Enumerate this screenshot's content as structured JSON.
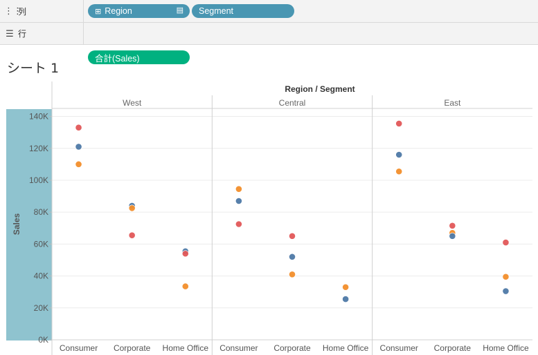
{
  "shelves": {
    "columns": {
      "icon": "columns-icon",
      "label": "列",
      "pills": [
        "Region",
        "Segment"
      ]
    },
    "rows": {
      "icon": "rows-icon",
      "label": "行",
      "pills": [
        "合計(Sales)"
      ]
    }
  },
  "sheet_title": "シート 1",
  "colors": {
    "pill_dimension": "#4996b2",
    "pill_measure": "#00b180",
    "axis_band": "#8fc3cf",
    "Consumer": "#e15759",
    "Corporate": "#4e79a7",
    "Home Office": "#f28e2b"
  },
  "chart_data": {
    "type": "scatter",
    "header_title": "Region / Segment",
    "regions": [
      "West",
      "Central",
      "East"
    ],
    "segments": [
      "Consumer",
      "Corporate",
      "Home Office"
    ],
    "ylabel": "Sales",
    "ylim": [
      0,
      145000
    ],
    "yticks": [
      0,
      20000,
      40000,
      60000,
      80000,
      100000,
      120000,
      140000
    ],
    "ytick_labels": [
      "0K",
      "20K",
      "40K",
      "60K",
      "80K",
      "100K",
      "120K",
      "140K"
    ],
    "grid": true,
    "points": [
      {
        "region": "West",
        "segment": "Consumer",
        "color_key": "Consumer",
        "value": 133000
      },
      {
        "region": "West",
        "segment": "Consumer",
        "color_key": "Corporate",
        "value": 121000
      },
      {
        "region": "West",
        "segment": "Consumer",
        "color_key": "Home Office",
        "value": 110000
      },
      {
        "region": "West",
        "segment": "Corporate",
        "color_key": "Corporate",
        "value": 84000
      },
      {
        "region": "West",
        "segment": "Corporate",
        "color_key": "Home Office",
        "value": 82500
      },
      {
        "region": "West",
        "segment": "Corporate",
        "color_key": "Consumer",
        "value": 65500
      },
      {
        "region": "West",
        "segment": "Home Office",
        "color_key": "Corporate",
        "value": 55500
      },
      {
        "region": "West",
        "segment": "Home Office",
        "color_key": "Consumer",
        "value": 54000
      },
      {
        "region": "West",
        "segment": "Home Office",
        "color_key": "Home Office",
        "value": 33500
      },
      {
        "region": "Central",
        "segment": "Consumer",
        "color_key": "Home Office",
        "value": 94500
      },
      {
        "region": "Central",
        "segment": "Consumer",
        "color_key": "Corporate",
        "value": 87000
      },
      {
        "region": "Central",
        "segment": "Consumer",
        "color_key": "Consumer",
        "value": 72500
      },
      {
        "region": "Central",
        "segment": "Corporate",
        "color_key": "Consumer",
        "value": 65000
      },
      {
        "region": "Central",
        "segment": "Corporate",
        "color_key": "Corporate",
        "value": 52000
      },
      {
        "region": "Central",
        "segment": "Corporate",
        "color_key": "Home Office",
        "value": 41000
      },
      {
        "region": "Central",
        "segment": "Home Office",
        "color_key": "Home Office",
        "value": 33000
      },
      {
        "region": "Central",
        "segment": "Home Office",
        "color_key": "Corporate",
        "value": 25500
      },
      {
        "region": "East",
        "segment": "Consumer",
        "color_key": "Consumer",
        "value": 135500
      },
      {
        "region": "East",
        "segment": "Consumer",
        "color_key": "Corporate",
        "value": 116000
      },
      {
        "region": "East",
        "segment": "Consumer",
        "color_key": "Home Office",
        "value": 105500
      },
      {
        "region": "East",
        "segment": "Corporate",
        "color_key": "Consumer",
        "value": 71500
      },
      {
        "region": "East",
        "segment": "Corporate",
        "color_key": "Home Office",
        "value": 67000
      },
      {
        "region": "East",
        "segment": "Corporate",
        "color_key": "Corporate",
        "value": 65000
      },
      {
        "region": "East",
        "segment": "Home Office",
        "color_key": "Consumer",
        "value": 61000
      },
      {
        "region": "East",
        "segment": "Home Office",
        "color_key": "Home Office",
        "value": 39500
      },
      {
        "region": "East",
        "segment": "Home Office",
        "color_key": "Corporate",
        "value": 30500
      }
    ]
  }
}
